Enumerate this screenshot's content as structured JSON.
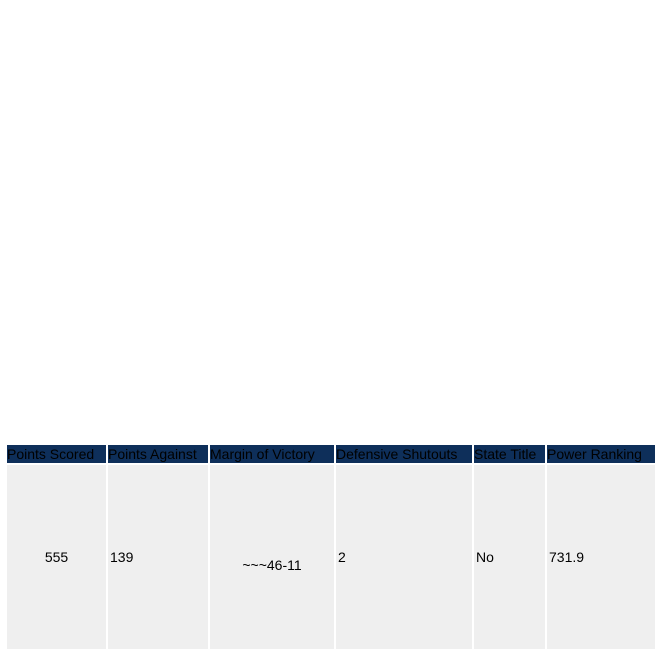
{
  "table": {
    "headers": [
      "Points Scored",
      "Points Against",
      "Margin of Victory",
      "Defensive Shutouts",
      "State Title",
      "Power Ranking"
    ],
    "row": {
      "points_scored": "555",
      "points_against": "139",
      "margin_of_victory": "~~~46-11",
      "defensive_shutouts": "2",
      "state_title": "No",
      "power_ranking": "731.9"
    }
  }
}
